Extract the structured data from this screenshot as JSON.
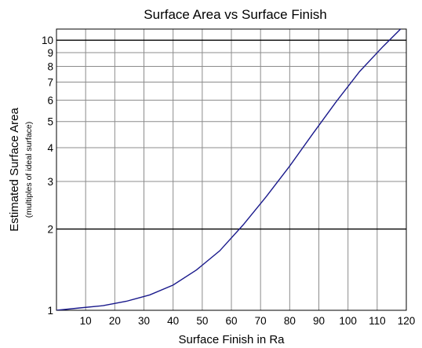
{
  "chart_data": {
    "type": "line",
    "title": "Surface Area vs Surface Finish",
    "xlabel": "Surface Finish in Ra",
    "ylabel": "Estimated Surface Area",
    "ylabel_sub": "(multiples of ideal surface)",
    "xlim": [
      0,
      120
    ],
    "ylim": [
      1,
      11
    ],
    "y_scale": "log",
    "grid": true,
    "x_ticks": [
      10,
      20,
      30,
      40,
      50,
      60,
      70,
      80,
      90,
      100,
      110,
      120
    ],
    "x_tick_labels": [
      "10",
      "20",
      "30",
      "40",
      "50",
      "60",
      "70",
      "80",
      "90",
      "100",
      "110",
      "120"
    ],
    "y_ticks": [
      1,
      2,
      3,
      4,
      5,
      6,
      7,
      8,
      9,
      10
    ],
    "y_tick_labels": [
      "1",
      "2",
      "3",
      "4",
      "5",
      "6",
      "7",
      "8",
      "9",
      "10"
    ],
    "line_color": "#1a1a8c",
    "series": [
      {
        "x": [
          0,
          8,
          16,
          24,
          32,
          40,
          48,
          56,
          64,
          72,
          80,
          88,
          96,
          104,
          112,
          118
        ],
        "y": [
          1.0,
          1.02,
          1.04,
          1.08,
          1.14,
          1.24,
          1.41,
          1.66,
          2.07,
          2.64,
          3.42,
          4.52,
          5.93,
          7.66,
          9.48,
          11.0
        ]
      }
    ]
  }
}
